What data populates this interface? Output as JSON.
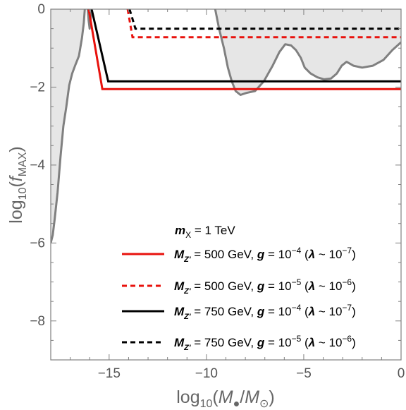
{
  "chart_data": {
    "type": "line",
    "title": "",
    "xlabel": "log10(M●/M⊙)",
    "ylabel": "log10(fMAX)",
    "xlim": [
      -18,
      0
    ],
    "ylim": [
      -9,
      0
    ],
    "xticks": [
      -15,
      -10,
      -5,
      0
    ],
    "yticks": [
      0,
      -2,
      -4,
      -6,
      -8
    ],
    "xtick_labels": [
      "−15",
      "−10",
      "−5",
      "0"
    ],
    "ytick_labels": [
      "0",
      "−2",
      "−4",
      "−6",
      "−8"
    ],
    "grid": false,
    "legend_position": "bottom-right",
    "legend_header": "m_X = 1 TeV",
    "excluded_regions": [
      {
        "fill": "#e6e6e6",
        "stroke": "#808080",
        "points": [
          [
            -18,
            -6.0
          ],
          [
            -17.9,
            -5.8
          ],
          [
            -17.8,
            -5.4
          ],
          [
            -17.65,
            -4.7
          ],
          [
            -17.5,
            -3.8
          ],
          [
            -17.35,
            -3.0
          ],
          [
            -17.2,
            -2.5
          ],
          [
            -17.05,
            -1.95
          ],
          [
            -16.9,
            -1.65
          ],
          [
            -16.75,
            -1.45
          ],
          [
            -16.55,
            -1.2
          ],
          [
            -16.4,
            -0.75
          ],
          [
            -16.3,
            -0.35
          ],
          [
            -16.25,
            0.0
          ]
        ]
      },
      {
        "fill": "#e6e6e6",
        "stroke": "#808080",
        "points": [
          [
            -16.1,
            0.0
          ],
          [
            -16.05,
            -0.3
          ],
          [
            -16.0,
            -0.5
          ],
          [
            -15.95,
            -0.25
          ],
          [
            -15.9,
            0.0
          ]
        ]
      },
      {
        "fill": "#e6e6e6",
        "stroke": "#808080",
        "points": [
          [
            -9.55,
            0.0
          ],
          [
            -9.35,
            -0.5
          ],
          [
            -9.1,
            -1.0
          ],
          [
            -8.9,
            -1.5
          ],
          [
            -8.7,
            -1.85
          ],
          [
            -8.5,
            -2.1
          ],
          [
            -8.25,
            -2.2
          ],
          [
            -7.95,
            -2.15
          ],
          [
            -7.5,
            -2.1
          ],
          [
            -7.05,
            -1.85
          ],
          [
            -6.6,
            -1.45
          ],
          [
            -6.25,
            -1.1
          ],
          [
            -5.95,
            -0.9
          ],
          [
            -5.65,
            -0.93
          ],
          [
            -5.4,
            -1.05
          ],
          [
            -5.15,
            -1.25
          ],
          [
            -4.95,
            -1.5
          ],
          [
            -4.65,
            -1.65
          ],
          [
            -4.3,
            -1.75
          ],
          [
            -3.95,
            -1.8
          ],
          [
            -3.6,
            -1.78
          ],
          [
            -3.3,
            -1.65
          ],
          [
            -3.05,
            -1.45
          ],
          [
            -2.8,
            -1.35
          ],
          [
            -2.45,
            -1.45
          ],
          [
            -2.0,
            -1.5
          ],
          [
            -1.45,
            -1.45
          ],
          [
            -0.9,
            -1.3
          ],
          [
            -0.45,
            -1.05
          ],
          [
            0.0,
            -0.85
          ],
          [
            0.0,
            0.0
          ]
        ]
      }
    ],
    "series": [
      {
        "color": "#e8120d",
        "dash": "solid",
        "points": [
          [
            -16.05,
            0.0
          ],
          [
            -15.35,
            -2.05
          ],
          [
            0.0,
            -2.05
          ]
        ]
      },
      {
        "color": "#e8120d",
        "dash": "dashed",
        "points": [
          [
            -14.05,
            0.0
          ],
          [
            -13.8,
            -0.72
          ],
          [
            0.0,
            -0.72
          ]
        ]
      },
      {
        "color": "#000000",
        "dash": "solid",
        "points": [
          [
            -15.9,
            0.0
          ],
          [
            -15.05,
            -1.85
          ],
          [
            0.0,
            -1.85
          ]
        ]
      },
      {
        "color": "#000000",
        "dash": "dashed",
        "points": [
          [
            -13.95,
            0.0
          ],
          [
            -13.65,
            -0.5
          ],
          [
            0.0,
            -0.5
          ]
        ]
      }
    ],
    "legend": [
      {
        "color": "#e8120d",
        "dash": "solid",
        "mass": "500 GeV",
        "coupling": "−4",
        "lambda": "−7"
      },
      {
        "color": "#e8120d",
        "dash": "dashed",
        "mass": "500 GeV",
        "coupling": "−5",
        "lambda": "−6"
      },
      {
        "color": "#000000",
        "dash": "solid",
        "mass": "750 GeV",
        "coupling": "−4",
        "lambda": "−7"
      },
      {
        "color": "#000000",
        "dash": "dashed",
        "mass": "750 GeV",
        "coupling": "−5",
        "lambda": "−6"
      }
    ]
  }
}
